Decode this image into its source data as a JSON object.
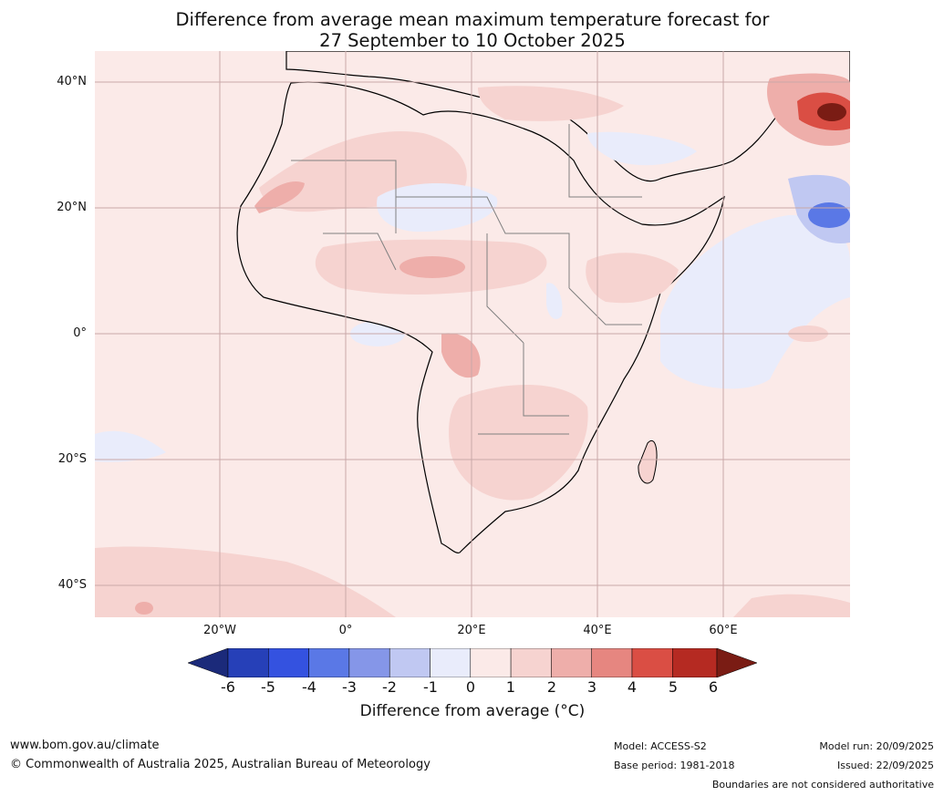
{
  "title": {
    "line1": "Difference from average mean maximum temperature forecast for",
    "line2": "27 September to 10 October 2025"
  },
  "map": {
    "latitude_labels": [
      "40°N",
      "20°N",
      "0°",
      "20°S",
      "40°S"
    ],
    "longitude_labels": [
      "20°W",
      "0°",
      "20°E",
      "40°E",
      "60°E"
    ],
    "colors": {
      "ocean_background": "#fbeae8",
      "grid_line": "#c9a8a8",
      "coast_line": "#000000",
      "border_line": "#808080"
    }
  },
  "colorbar": {
    "ticks": [
      "-6",
      "-5",
      "-4",
      "-3",
      "-2",
      "-1",
      "0",
      "1",
      "2",
      "3",
      "4",
      "5",
      "6"
    ],
    "colors": [
      "#1b2a7a",
      "#2640b8",
      "#3452e0",
      "#5a78e6",
      "#8596e8",
      "#c0c8f2",
      "#e9ecfb",
      "#fbeae8",
      "#f6d3d0",
      "#eeaeaa",
      "#e68680",
      "#da4e44",
      "#b52a22",
      "#7a1c14"
    ],
    "label": "Difference from average (°C)"
  },
  "footer": {
    "website": "www.bom.gov.au/climate",
    "copyright": "© Commonwealth of Australia 2025, Australian Bureau of Meteorology",
    "model": "Model: ACCESS-S2",
    "base_period": "Base period: 1981-2018",
    "model_run": "Model run: 20/09/2025",
    "issued": "Issued: 22/09/2025",
    "disclaimer": "Boundaries are not considered authoritative"
  }
}
